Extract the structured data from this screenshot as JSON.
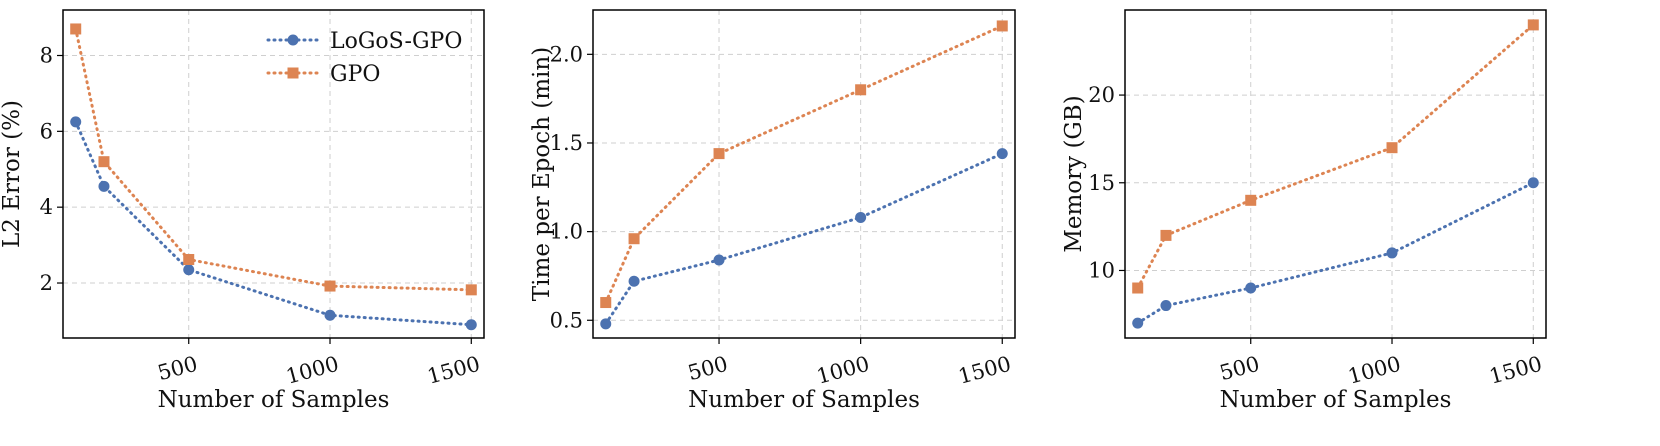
{
  "colors": {
    "series_a": "#4c72b0",
    "series_b": "#dd8452"
  },
  "chart_data": [
    {
      "type": "line",
      "title": "",
      "xlabel": "Number of Samples",
      "ylabel": "L2 Error (%)",
      "xlim": [
        55,
        1545
      ],
      "ylim": [
        0.55,
        9.2
      ],
      "xticks": [
        500,
        1000,
        1500
      ],
      "yticks": [
        2,
        4,
        6,
        8
      ],
      "grid": true,
      "legend": "top-right",
      "x": [
        100,
        200,
        500,
        1000,
        1500
      ],
      "series": [
        {
          "name": "LoGoS-GPO",
          "marker": "circle",
          "values": [
            6.25,
            4.55,
            2.35,
            1.15,
            0.9
          ]
        },
        {
          "name": "GPO",
          "marker": "square",
          "values": [
            8.7,
            5.2,
            2.62,
            1.92,
            1.82
          ]
        }
      ]
    },
    {
      "type": "line",
      "title": "",
      "xlabel": "Number of Samples",
      "ylabel": "Time per Epoch (min)",
      "xlim": [
        55,
        1545
      ],
      "ylim": [
        0.4,
        2.25
      ],
      "xticks": [
        500,
        1000,
        1500
      ],
      "yticks": [
        0.5,
        1.0,
        1.5,
        2.0
      ],
      "ytick_format": "fixed1",
      "grid": true,
      "x": [
        100,
        200,
        500,
        1000,
        1500
      ],
      "series": [
        {
          "name": "LoGoS-GPO",
          "marker": "circle",
          "values": [
            0.48,
            0.72,
            0.84,
            1.08,
            1.44
          ]
        },
        {
          "name": "GPO",
          "marker": "square",
          "values": [
            0.6,
            0.96,
            1.44,
            1.8,
            2.16
          ]
        }
      ]
    },
    {
      "type": "line",
      "title": "",
      "xlabel": "Number of Samples",
      "ylabel": "Memory (GB)",
      "xlim": [
        55,
        1545
      ],
      "ylim": [
        6.15,
        24.85
      ],
      "xticks": [
        500,
        1000,
        1500
      ],
      "yticks": [
        10,
        15,
        20
      ],
      "grid": true,
      "x": [
        100,
        200,
        500,
        1000,
        1500
      ],
      "series": [
        {
          "name": "LoGoS-GPO",
          "marker": "circle",
          "values": [
            7,
            8,
            9,
            11,
            15
          ]
        },
        {
          "name": "GPO",
          "marker": "square",
          "values": [
            9,
            12,
            14,
            17,
            24
          ]
        }
      ]
    }
  ]
}
